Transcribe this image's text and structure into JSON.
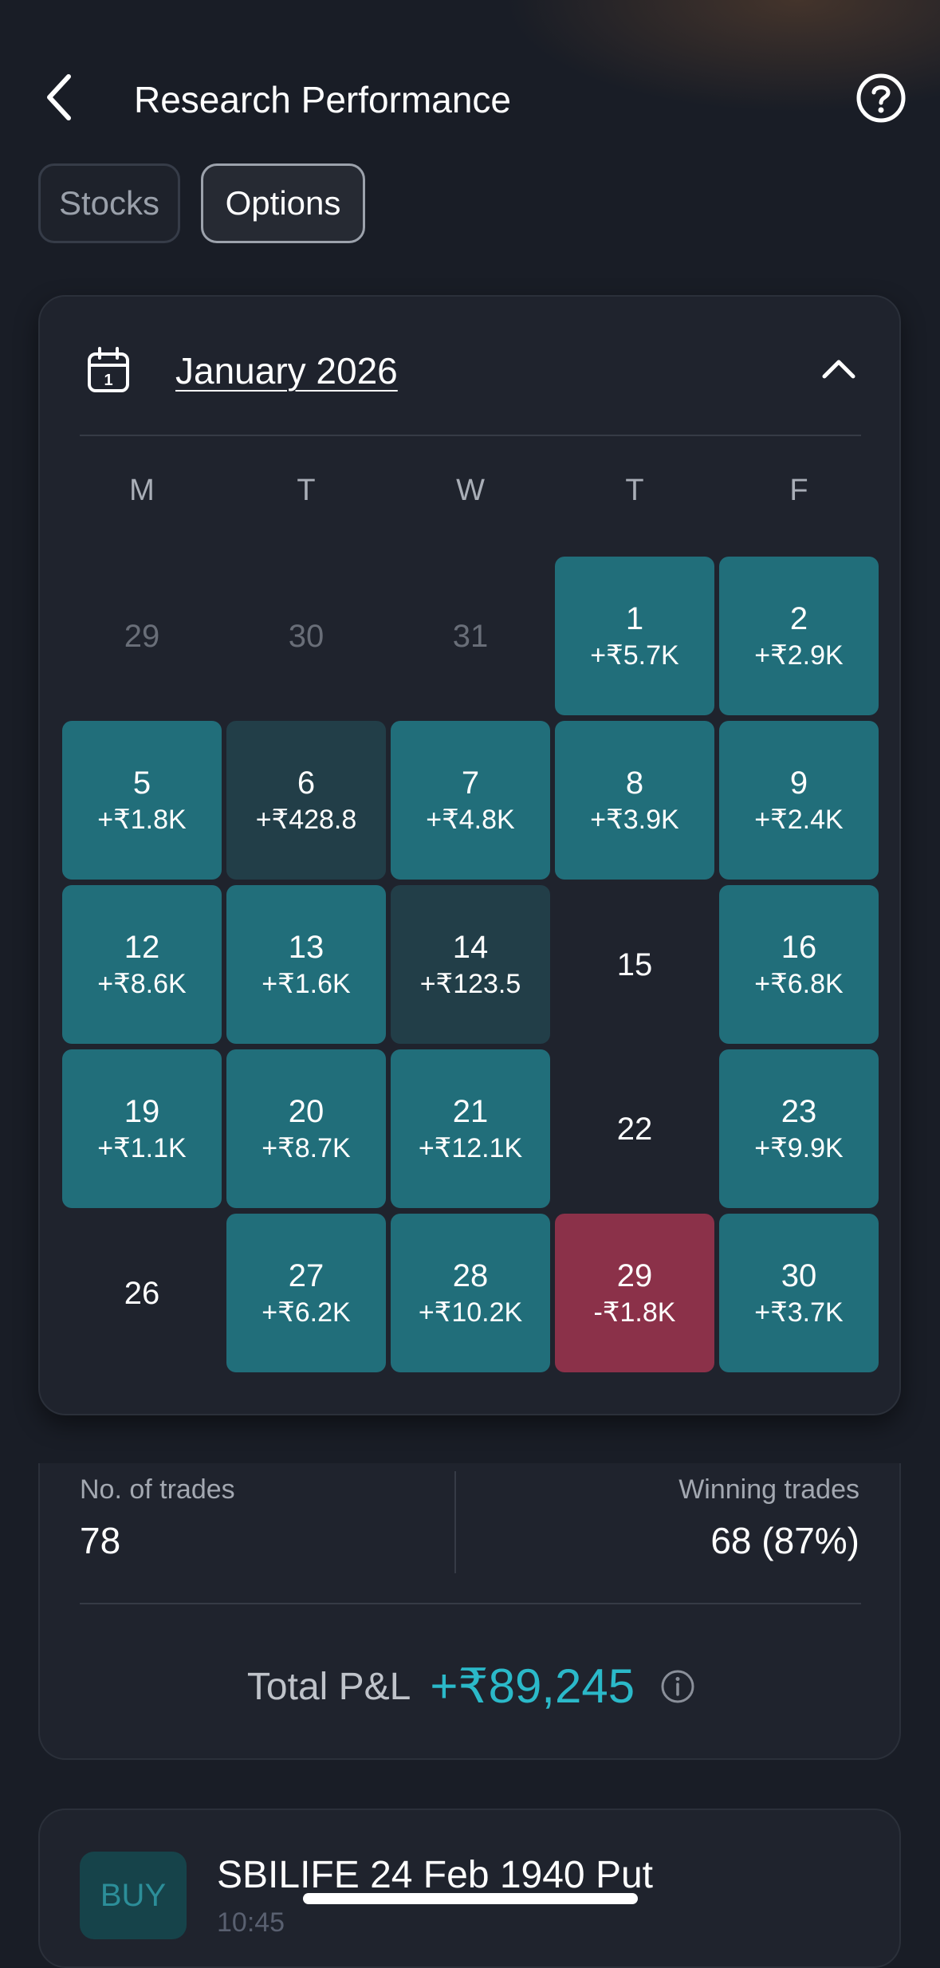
{
  "header": {
    "title": "Research Performance"
  },
  "tabs": [
    {
      "label": "Stocks",
      "active": false
    },
    {
      "label": "Options",
      "active": true
    }
  ],
  "calendar": {
    "month_label": "January 2026",
    "weekdays": [
      "M",
      "T",
      "W",
      "T",
      "F"
    ],
    "weeks": [
      [
        {
          "day": "29",
          "pnl": "",
          "state": "muted"
        },
        {
          "day": "30",
          "pnl": "",
          "state": "muted"
        },
        {
          "day": "31",
          "pnl": "",
          "state": "muted"
        },
        {
          "day": "1",
          "pnl": "+₹5.7K",
          "state": "profit"
        },
        {
          "day": "2",
          "pnl": "+₹2.9K",
          "state": "profit"
        }
      ],
      [
        {
          "day": "5",
          "pnl": "+₹1.8K",
          "state": "profit"
        },
        {
          "day": "6",
          "pnl": "+₹428.8",
          "state": "small"
        },
        {
          "day": "7",
          "pnl": "+₹4.8K",
          "state": "profit"
        },
        {
          "day": "8",
          "pnl": "+₹3.9K",
          "state": "profit"
        },
        {
          "day": "9",
          "pnl": "+₹2.4K",
          "state": "profit"
        }
      ],
      [
        {
          "day": "12",
          "pnl": "+₹8.6K",
          "state": "profit"
        },
        {
          "day": "13",
          "pnl": "+₹1.6K",
          "state": "profit"
        },
        {
          "day": "14",
          "pnl": "+₹123.5",
          "state": "small"
        },
        {
          "day": "15",
          "pnl": "",
          "state": "empty"
        },
        {
          "day": "16",
          "pnl": "+₹6.8K",
          "state": "profit"
        }
      ],
      [
        {
          "day": "19",
          "pnl": "+₹1.1K",
          "state": "profit"
        },
        {
          "day": "20",
          "pnl": "+₹8.7K",
          "state": "profit"
        },
        {
          "day": "21",
          "pnl": "+₹12.1K",
          "state": "profit"
        },
        {
          "day": "22",
          "pnl": "",
          "state": "empty"
        },
        {
          "day": "23",
          "pnl": "+₹9.9K",
          "state": "profit"
        }
      ],
      [
        {
          "day": "26",
          "pnl": "",
          "state": "empty"
        },
        {
          "day": "27",
          "pnl": "+₹6.2K",
          "state": "profit"
        },
        {
          "day": "28",
          "pnl": "+₹10.2K",
          "state": "profit"
        },
        {
          "day": "29",
          "pnl": "-₹1.8K",
          "state": "loss"
        },
        {
          "day": "30",
          "pnl": "+₹3.7K",
          "state": "profit"
        }
      ]
    ]
  },
  "stats": {
    "trades_label": "No. of trades",
    "trades_value": "78",
    "winning_label": "Winning trades",
    "winning_value": "68 (87%)",
    "total_pl_label": "Total P&L",
    "total_pl_value": "+₹89,245"
  },
  "trade": {
    "badge": "BUY",
    "title": "SBILIFE 24 Feb 1940 Put",
    "subtitle": "10:45"
  },
  "colors": {
    "background": "#191d26",
    "card": "#1f232d",
    "profit": "#216e7a",
    "small_profit": "#223e48",
    "loss": "#8b3149",
    "accent": "#2bb9c9"
  },
  "icons": {
    "back": "chevron-left-icon",
    "help": "help-circle-icon",
    "calendar": "calendar-icon",
    "collapse": "chevron-up-icon",
    "info": "info-icon"
  }
}
